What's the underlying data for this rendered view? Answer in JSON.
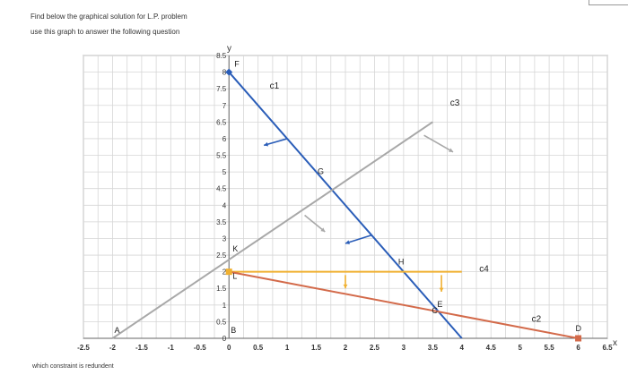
{
  "header": {
    "line1": "Find below the graphical solution for L.P. problem",
    "line2": "use this graph to answer the following question"
  },
  "footer": {
    "text": "which constraint is redundent"
  },
  "corner": {
    "text": ""
  },
  "chart_data": {
    "type": "line",
    "xlabel": "x",
    "ylabel": "y",
    "xlim": [
      -2.5,
      6.5
    ],
    "ylim": [
      0,
      8.5
    ],
    "grid": true,
    "x_ticks": [
      "-2.5",
      "-2",
      "-1.5",
      "-1",
      "-0.5",
      "0",
      "0.5",
      "1",
      "1.5",
      "2",
      "2.5",
      "3",
      "3.5",
      "4",
      "4.5",
      "5",
      "5.5",
      "6",
      "6.5"
    ],
    "x_tick_values": [
      -2.5,
      -2,
      -1.5,
      -1,
      -0.5,
      0,
      0.5,
      1,
      1.5,
      2,
      2.5,
      3,
      3.5,
      4,
      4.5,
      5,
      5.5,
      6,
      6.5
    ],
    "y_ticks": [
      "0",
      "0.5",
      "1",
      "1.5",
      "2",
      "2.5",
      "3",
      "3.5",
      "4",
      "4.5",
      "5",
      "5.5",
      "6",
      "6.5",
      "7",
      "7.5",
      "8",
      "8.5"
    ],
    "y_tick_values": [
      0,
      0.5,
      1,
      1.5,
      2,
      2.5,
      3,
      3.5,
      4,
      4.5,
      5,
      5.5,
      6,
      6.5,
      7,
      7.5,
      8,
      8.5
    ],
    "series": [
      {
        "name": "c1",
        "color": "#2a5db8",
        "x": [
          0,
          4
        ],
        "y": [
          8,
          0
        ]
      },
      {
        "name": "c3",
        "color": "#a8a8a8",
        "x": [
          -2,
          3.5
        ],
        "y": [
          0,
          6.5
        ]
      },
      {
        "name": "c4",
        "color": "#f0b030",
        "x": [
          0,
          4
        ],
        "y": [
          2,
          2
        ]
      },
      {
        "name": "c2",
        "color": "#d36a4a",
        "x": [
          0,
          6
        ],
        "y": [
          2,
          0
        ]
      }
    ],
    "direction_arrows": [
      {
        "color": "#2a5db8",
        "from": [
          1.0,
          6.0
        ],
        "to": [
          0.6,
          5.8
        ]
      },
      {
        "color": "#2a5db8",
        "from": [
          2.45,
          3.1
        ],
        "to": [
          2.0,
          2.85
        ]
      },
      {
        "color": "#a8a8a8",
        "from": [
          1.3,
          3.7
        ],
        "to": [
          1.65,
          3.2
        ]
      },
      {
        "color": "#a8a8a8",
        "from": [
          3.35,
          6.1
        ],
        "to": [
          3.85,
          5.6
        ]
      },
      {
        "color": "#f0b030",
        "from": [
          2.0,
          1.9
        ],
        "to": [
          2.0,
          1.5
        ]
      },
      {
        "color": "#f0b030",
        "from": [
          3.65,
          1.9
        ],
        "to": [
          3.65,
          1.4
        ]
      }
    ],
    "points": [
      {
        "label": "F",
        "x": 0,
        "y": 8,
        "color": "#2a5db8",
        "marker": "diamond"
      },
      {
        "label": "G",
        "x": 1.6,
        "y": 4.75,
        "color": null,
        "marker": "none"
      },
      {
        "label": "K",
        "x": 0,
        "y": 2.5,
        "color": null,
        "marker": "none"
      },
      {
        "label": "L",
        "x": 0,
        "y": 2,
        "color": "#f0b030",
        "marker": "square"
      },
      {
        "label": "H",
        "x": 3,
        "y": 2,
        "color": null,
        "marker": "none"
      },
      {
        "label": "E",
        "x": 3.67,
        "y": 0.78,
        "color": null,
        "marker": "none"
      },
      {
        "label": "C",
        "x": 3.5,
        "y": 1.0,
        "color": null,
        "marker": "none"
      },
      {
        "label": "A",
        "x": -2,
        "y": 0,
        "color": null,
        "marker": "none"
      },
      {
        "label": "B",
        "x": 0,
        "y": 0,
        "color": null,
        "marker": "none"
      },
      {
        "label": "D",
        "x": 6,
        "y": 0,
        "color": "#d36a4a",
        "marker": "square"
      }
    ]
  }
}
